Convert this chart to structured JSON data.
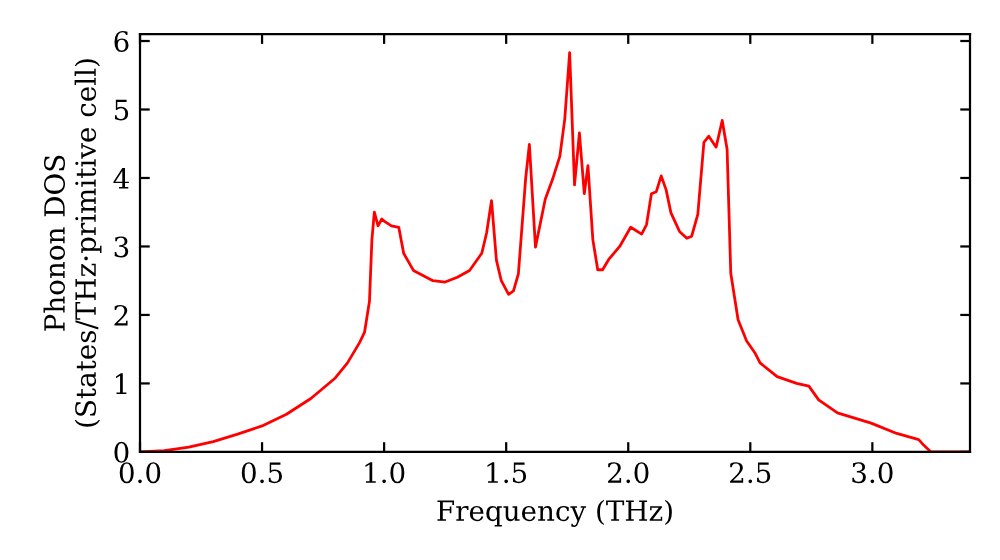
{
  "chart_data": {
    "type": "line",
    "xlabel": "Frequency (THz)",
    "ylabel": "Phonon DOS\n(States/THz·primitive cell)",
    "xlim": [
      0,
      3.4
    ],
    "ylim": [
      0,
      6.1
    ],
    "xticks": [
      {
        "value": 0,
        "label": "0.0"
      },
      0.5,
      {
        "value": 1,
        "label": "1.0"
      },
      1.5,
      {
        "value": 2,
        "label": "2.0"
      },
      2.5,
      {
        "value": 3,
        "label": "3.0"
      }
    ],
    "yticks": [
      0,
      1,
      2,
      3,
      4,
      5,
      6
    ],
    "grid": false,
    "series": [
      {
        "color": "#ff0000",
        "x": [
          0,
          0.1,
          0.2,
          0.3,
          0.4,
          0.5,
          0.6,
          0.7,
          0.8,
          0.85,
          0.9,
          0.92,
          0.94,
          0.95,
          0.96,
          0.975,
          0.99,
          1.0,
          1.03,
          1.06,
          1.08,
          1.12,
          1.2,
          1.25,
          1.3,
          1.35,
          1.4,
          1.42,
          1.44,
          1.46,
          1.48,
          1.51,
          1.53,
          1.55,
          1.58,
          1.595,
          1.62,
          1.66,
          1.69,
          1.72,
          1.74,
          1.76,
          1.78,
          1.8,
          1.82,
          1.835,
          1.855,
          1.875,
          1.895,
          1.92,
          1.965,
          2.01,
          2.055,
          2.075,
          2.095,
          2.115,
          2.135,
          2.155,
          2.175,
          2.21,
          2.24,
          2.26,
          2.285,
          2.31,
          2.33,
          2.36,
          2.385,
          2.405,
          2.42,
          2.45,
          2.485,
          2.52,
          2.54,
          2.61,
          2.69,
          2.74,
          2.78,
          2.857,
          2.995,
          3.1,
          3.19,
          3.21,
          3.24,
          3.4
        ],
        "values": [
          0,
          0.02,
          0.07,
          0.15,
          0.26,
          0.38,
          0.55,
          0.78,
          1.08,
          1.3,
          1.6,
          1.75,
          2.2,
          3.1,
          3.5,
          3.3,
          3.4,
          3.37,
          3.3,
          3.28,
          2.9,
          2.65,
          2.5,
          2.48,
          2.55,
          2.65,
          2.9,
          3.2,
          3.67,
          2.8,
          2.5,
          2.3,
          2.35,
          2.6,
          4.0,
          4.49,
          2.99,
          3.69,
          3.98,
          4.32,
          4.86,
          5.83,
          3.9,
          4.66,
          3.77,
          4.18,
          3.1,
          2.66,
          2.66,
          2.81,
          3.0,
          3.28,
          3.18,
          3.32,
          3.77,
          3.8,
          4.03,
          3.83,
          3.49,
          3.22,
          3.12,
          3.15,
          3.47,
          4.52,
          4.61,
          4.45,
          4.84,
          4.42,
          2.61,
          1.93,
          1.62,
          1.44,
          1.3,
          1.1,
          1.0,
          0.96,
          0.76,
          0.57,
          0.42,
          0.27,
          0.18,
          0.1,
          0,
          0
        ]
      }
    ]
  }
}
